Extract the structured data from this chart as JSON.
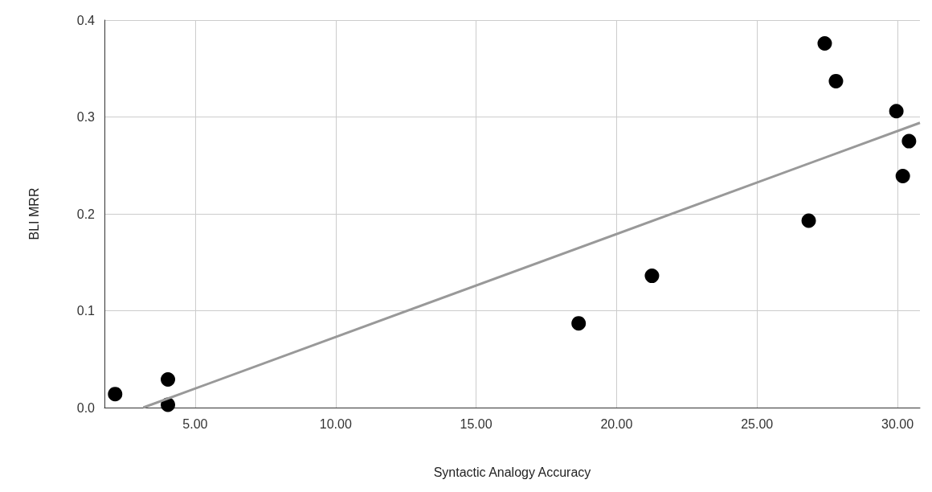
{
  "chart_data": {
    "type": "scatter",
    "xlabel": "Syntactic Analogy Accuracy",
    "ylabel": "BLI MRR",
    "series": [
      {
        "color": "#000000",
        "x": [
          2.15,
          4.03,
          4.03,
          18.65,
          21.26,
          26.84,
          27.41,
          27.81,
          29.96,
          30.19,
          30.41
        ],
        "values": [
          0.014,
          0.029,
          0.003,
          0.087,
          0.136,
          0.193,
          0.376,
          0.337,
          0.306,
          0.239,
          0.275
        ]
      },
      {
        "type": "line",
        "color": "#999999",
        "x": [
          3.15,
          30.8
        ],
        "values": [
          0,
          0.294
        ],
        "marker": "none"
      }
    ],
    "xlim": [
      1.77,
      30.8
    ],
    "xticks": [
      {
        "value": 5,
        "label": "5.00"
      },
      {
        "value": 10,
        "label": "10.00"
      },
      {
        "value": 15,
        "label": "15.00"
      },
      {
        "value": 20,
        "label": "20.00"
      },
      {
        "value": 25,
        "label": "25.00"
      },
      {
        "value": 30,
        "label": "30.00"
      }
    ],
    "ylim": [
      0,
      0.4
    ],
    "yticks": [
      {
        "value": 0,
        "label": "0.0"
      },
      {
        "value": 0.1,
        "label": "0.1"
      },
      {
        "value": 0.2,
        "label": "0.2"
      },
      {
        "value": 0.3,
        "label": "0.3"
      },
      {
        "value": 0.4,
        "label": "0.4"
      }
    ],
    "grid": true,
    "marker": "circle"
  }
}
